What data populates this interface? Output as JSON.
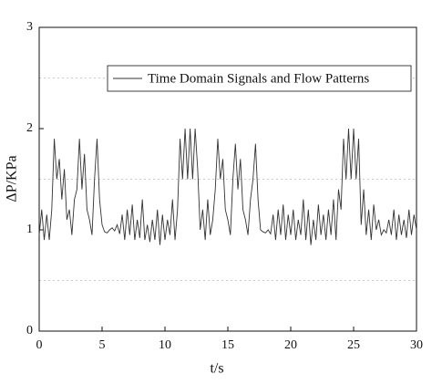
{
  "chart_data": {
    "type": "line",
    "x_label": "t/s",
    "y_label": "ΔP/KPa",
    "x": [
      0,
      0.2,
      0.4,
      0.6,
      0.8,
      1,
      1.2,
      1.4,
      1.6,
      1.8,
      2,
      2.2,
      2.4,
      2.6,
      2.8,
      3,
      3.2,
      3.4,
      3.6,
      3.8,
      4,
      4.2,
      4.4,
      4.6,
      4.8,
      5,
      5.2,
      5.4,
      5.6,
      5.8,
      6,
      6.2,
      6.4,
      6.6,
      6.8,
      7,
      7.2,
      7.4,
      7.6,
      7.8,
      8,
      8.2,
      8.4,
      8.6,
      8.8,
      9,
      9.2,
      9.4,
      9.6,
      9.8,
      10,
      10.2,
      10.4,
      10.6,
      10.8,
      11,
      11.2,
      11.4,
      11.6,
      11.8,
      12,
      12.2,
      12.4,
      12.6,
      12.8,
      13,
      13.2,
      13.4,
      13.6,
      13.8,
      14,
      14.2,
      14.4,
      14.6,
      14.8,
      15,
      15.2,
      15.4,
      15.6,
      15.8,
      16,
      16.2,
      16.4,
      16.6,
      16.8,
      17,
      17.2,
      17.4,
      17.6,
      17.8,
      18,
      18.2,
      18.4,
      18.6,
      18.8,
      19,
      19.2,
      19.4,
      19.6,
      19.8,
      20,
      20.2,
      20.4,
      20.6,
      20.8,
      21,
      21.2,
      21.4,
      21.6,
      21.8,
      22,
      22.2,
      22.4,
      22.6,
      22.8,
      23,
      23.2,
      23.4,
      23.6,
      23.8,
      24,
      24.2,
      24.4,
      24.6,
      24.8,
      25,
      25.2,
      25.4,
      25.6,
      25.8,
      26,
      26.2,
      26.4,
      26.6,
      26.8,
      27,
      27.2,
      27.4,
      27.6,
      27.8,
      28,
      28.2,
      28.4,
      28.6,
      28.8,
      29,
      29.2,
      29.4,
      29.6,
      29.8,
      30
    ],
    "series": [
      {
        "name": "Time Domain Signals and Flow Patterns",
        "color": "#333333",
        "values": [
          0.95,
          1.2,
          0.9,
          1.15,
          0.9,
          1.2,
          1.9,
          1.5,
          1.7,
          1.3,
          1.6,
          1.1,
          1.2,
          0.95,
          1.3,
          1.4,
          1.9,
          1.4,
          1.75,
          1.2,
          1.1,
          0.95,
          1.5,
          1.9,
          1.3,
          1.05,
          0.98,
          0.97,
          1.0,
          1.02,
          0.99,
          1.05,
          0.96,
          1.15,
          0.9,
          1.2,
          0.95,
          1.25,
          0.9,
          1.1,
          0.92,
          1.3,
          0.9,
          1.05,
          0.88,
          1.1,
          0.9,
          1.2,
          0.85,
          1.15,
          0.9,
          1.1,
          0.95,
          1.3,
          0.9,
          1.2,
          1.9,
          1.5,
          2.0,
          1.5,
          2.0,
          1.5,
          2.0,
          1.6,
          1.0,
          1.2,
          0.9,
          1.3,
          0.95,
          1.1,
          1.4,
          1.9,
          1.5,
          1.7,
          1.2,
          1.1,
          0.95,
          1.5,
          1.85,
          1.4,
          1.7,
          1.2,
          1.1,
          0.95,
          1.3,
          1.5,
          1.85,
          1.3,
          1.0,
          0.98,
          0.97,
          1.0,
          0.96,
          1.15,
          0.9,
          1.2,
          0.95,
          1.25,
          0.9,
          1.15,
          0.95,
          1.2,
          0.9,
          1.1,
          0.95,
          1.3,
          0.9,
          1.2,
          0.85,
          1.1,
          0.9,
          1.25,
          0.95,
          1.15,
          0.9,
          1.2,
          0.95,
          1.3,
          0.9,
          1.4,
          1.2,
          1.9,
          1.5,
          2.0,
          1.5,
          2.0,
          1.5,
          1.9,
          1.05,
          1.4,
          0.95,
          1.2,
          0.9,
          1.25,
          1.0,
          1.1,
          0.95,
          1.0,
          0.97,
          1.1,
          0.95,
          1.2,
          0.9,
          1.15,
          0.95,
          1.1,
          0.92,
          1.2,
          0.95,
          1.15,
          1.0
        ]
      }
    ],
    "xlim": [
      0,
      30
    ],
    "xticks": [
      0,
      5,
      10,
      15,
      20,
      25,
      30
    ],
    "ylim": [
      0,
      3
    ],
    "yticks": [
      0,
      1,
      2,
      3
    ],
    "minor_grid_y": [
      0.5,
      1.5,
      2.5
    ],
    "legend": "upper right"
  }
}
